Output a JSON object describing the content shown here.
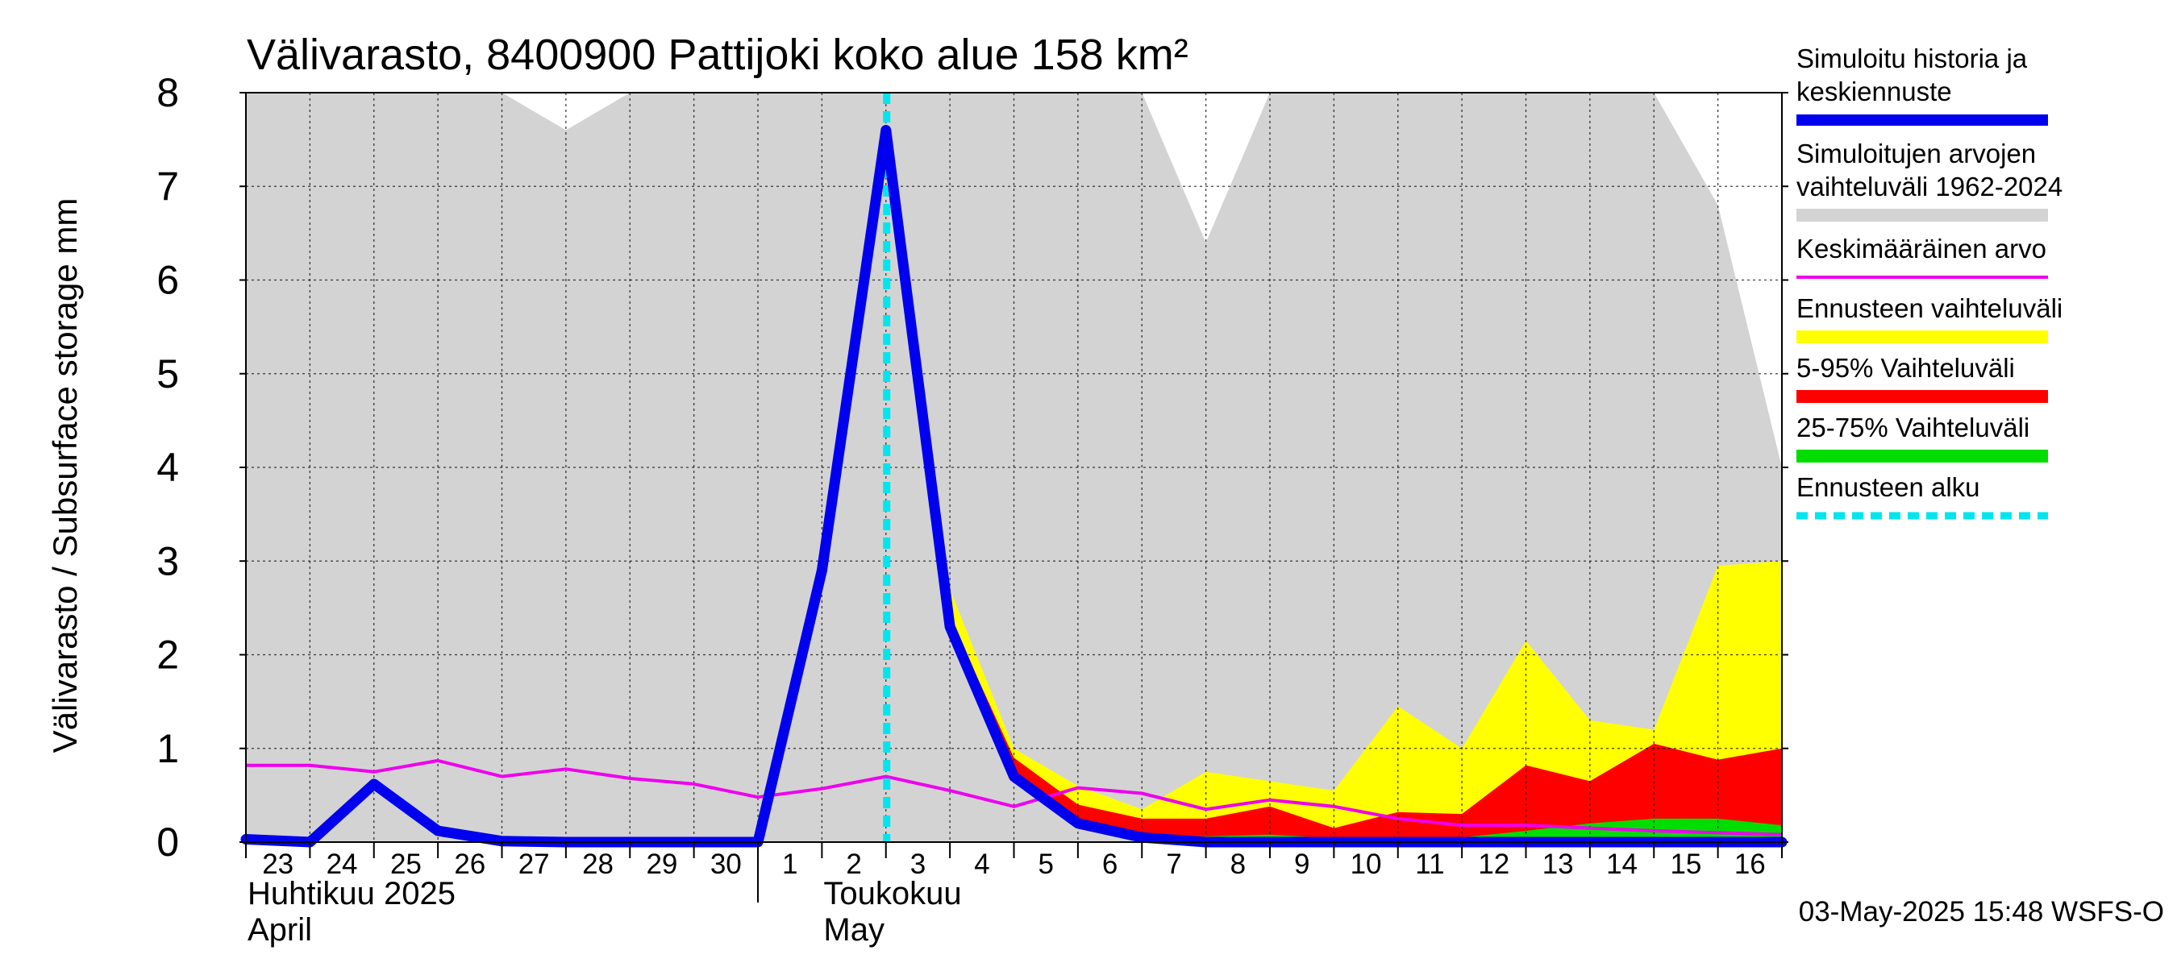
{
  "chart_data": {
    "type": "area",
    "title": "Välivarasto, 8400900 Pattijoki koko alue 158 km²",
    "ylabel": "Välivarasto / Subsurface storage  mm",
    "ylim": [
      0,
      8
    ],
    "yticks": [
      "0",
      "1",
      "2",
      "3",
      "4",
      "5",
      "6",
      "7",
      "8"
    ],
    "x_start": "2025-04-23",
    "x_end": "2025-05-17",
    "xtick_labels": [
      "23",
      "24",
      "25",
      "26",
      "27",
      "28",
      "29",
      "30",
      "1",
      "2",
      "3",
      "4",
      "5",
      "6",
      "7",
      "8",
      "9",
      "10",
      "11",
      "12",
      "13",
      "14",
      "15",
      "16"
    ],
    "month_labels": [
      {
        "fi": "Huhtikuu  2025",
        "en": "April",
        "date": "2025-04-23"
      },
      {
        "fi": "Toukokuu",
        "en": "May",
        "date": "2025-05-02"
      }
    ],
    "month_divider_date": "2025-05-01",
    "forecast_start": "2025-05-03",
    "grid": true,
    "legend_placement": "right",
    "legend": [
      {
        "label": "Simuloitu historia ja keskiennuste",
        "color": "#0000ee",
        "style": "line-thick"
      },
      {
        "label": "Simuloitujen arvojen vaihteluväli 1962-2024",
        "color": "#d3d3d3",
        "style": "band"
      },
      {
        "label": "Keskimääräinen arvo",
        "color": "#ee00ee",
        "style": "line"
      },
      {
        "label": "Ennusteen vaihteluväli",
        "color": "#ffff00",
        "style": "band"
      },
      {
        "label": "5-95% Vaihteluväli",
        "color": "#ff0000",
        "style": "band"
      },
      {
        "label": "25-75% Vaihteluväli",
        "color": "#00dd00",
        "style": "band"
      },
      {
        "label": "Ennusteen alku",
        "color": "#00e5ee",
        "style": "dashed"
      }
    ],
    "series": [
      {
        "name": "Simuloitujen arvojen vaihteluväli 1962-2024",
        "type": "band",
        "color": "#d3d3d3",
        "x": [
          "2025-04-23",
          "2025-04-24",
          "2025-04-25",
          "2025-04-26",
          "2025-04-27",
          "2025-04-28",
          "2025-04-29",
          "2025-04-30",
          "2025-05-01",
          "2025-05-02",
          "2025-05-03",
          "2025-05-04",
          "2025-05-05",
          "2025-05-06",
          "2025-05-07",
          "2025-05-08",
          "2025-05-09",
          "2025-05-10",
          "2025-05-11",
          "2025-05-12",
          "2025-05-13",
          "2025-05-14",
          "2025-05-15",
          "2025-05-16",
          "2025-05-17"
        ],
        "upper": [
          8,
          8,
          8,
          8,
          8,
          7.6,
          8,
          8,
          8,
          8,
          8,
          8,
          8,
          8,
          8,
          6.4,
          8,
          8,
          8,
          8,
          8,
          8,
          8,
          6.8,
          4.0
        ],
        "lower": [
          0,
          0,
          0,
          0,
          0,
          0,
          0,
          0,
          0,
          0,
          0,
          0,
          0,
          0,
          0,
          0,
          0,
          0,
          0,
          0,
          0,
          0,
          0,
          0,
          0
        ]
      },
      {
        "name": "Ennusteen vaihteluväli",
        "type": "band",
        "color": "#ffff00",
        "x": [
          "2025-05-03",
          "2025-05-04",
          "2025-05-05",
          "2025-05-06",
          "2025-05-07",
          "2025-05-08",
          "2025-05-09",
          "2025-05-10",
          "2025-05-11",
          "2025-05-12",
          "2025-05-13",
          "2025-05-14",
          "2025-05-15",
          "2025-05-16",
          "2025-05-17"
        ],
        "upper": [
          7.6,
          2.7,
          1.0,
          0.6,
          0.35,
          0.75,
          0.65,
          0.55,
          1.45,
          1.0,
          2.15,
          1.3,
          1.2,
          2.95,
          3.0
        ],
        "lower": [
          7.6,
          2.3,
          0.7,
          0.2,
          0.05,
          0.0,
          0.0,
          0.0,
          0.0,
          0.0,
          0.0,
          0.0,
          0.0,
          0.0,
          0.0
        ]
      },
      {
        "name": "5-95% Vaihteluväli",
        "type": "band",
        "color": "#ff0000",
        "x": [
          "2025-05-03",
          "2025-05-04",
          "2025-05-05",
          "2025-05-06",
          "2025-05-07",
          "2025-05-08",
          "2025-05-09",
          "2025-05-10",
          "2025-05-11",
          "2025-05-12",
          "2025-05-13",
          "2025-05-14",
          "2025-05-15",
          "2025-05-16",
          "2025-05-17"
        ],
        "upper": [
          7.6,
          2.4,
          0.9,
          0.4,
          0.25,
          0.25,
          0.38,
          0.15,
          0.32,
          0.3,
          0.82,
          0.65,
          1.05,
          0.88,
          1.0
        ],
        "lower": [
          7.6,
          2.3,
          0.7,
          0.2,
          0.05,
          0.0,
          0.0,
          0.0,
          0.0,
          0.0,
          0.0,
          0.0,
          0.0,
          0.0,
          0.0
        ]
      },
      {
        "name": "25-75% Vaihteluväli",
        "type": "band",
        "color": "#00dd00",
        "x": [
          "2025-05-03",
          "2025-05-04",
          "2025-05-05",
          "2025-05-06",
          "2025-05-07",
          "2025-05-08",
          "2025-05-09",
          "2025-05-10",
          "2025-05-11",
          "2025-05-12",
          "2025-05-13",
          "2025-05-14",
          "2025-05-15",
          "2025-05-16",
          "2025-05-17"
        ],
        "upper": [
          7.6,
          2.35,
          0.75,
          0.25,
          0.08,
          0.06,
          0.08,
          0.04,
          0.04,
          0.05,
          0.12,
          0.2,
          0.25,
          0.25,
          0.18
        ],
        "lower": [
          7.6,
          2.3,
          0.7,
          0.2,
          0.05,
          0.0,
          0.0,
          0.0,
          0.0,
          0.0,
          0.0,
          0.02,
          0.03,
          0.03,
          0.02
        ]
      },
      {
        "name": "Keskimääräinen arvo",
        "type": "line",
        "color": "#ee00ee",
        "x": [
          "2025-04-23",
          "2025-04-24",
          "2025-04-25",
          "2025-04-26",
          "2025-04-27",
          "2025-04-28",
          "2025-04-29",
          "2025-04-30",
          "2025-05-01",
          "2025-05-02",
          "2025-05-03",
          "2025-05-04",
          "2025-05-05",
          "2025-05-06",
          "2025-05-07",
          "2025-05-08",
          "2025-05-09",
          "2025-05-10",
          "2025-05-11",
          "2025-05-12",
          "2025-05-13",
          "2025-05-14",
          "2025-05-15",
          "2025-05-16",
          "2025-05-17"
        ],
        "values": [
          0.82,
          0.82,
          0.75,
          0.87,
          0.7,
          0.78,
          0.68,
          0.62,
          0.48,
          0.57,
          0.7,
          0.55,
          0.38,
          0.58,
          0.52,
          0.35,
          0.45,
          0.38,
          0.25,
          0.18,
          0.18,
          0.15,
          0.12,
          0.1,
          0.08
        ]
      },
      {
        "name": "Simuloitu historia ja keskiennuste",
        "type": "line",
        "color": "#0000ee",
        "x": [
          "2025-04-23",
          "2025-04-24",
          "2025-04-25",
          "2025-04-26",
          "2025-04-27",
          "2025-04-28",
          "2025-04-29",
          "2025-04-30",
          "2025-05-01",
          "2025-05-02",
          "2025-05-03",
          "2025-05-04",
          "2025-05-05",
          "2025-05-06",
          "2025-05-07",
          "2025-05-08",
          "2025-05-09",
          "2025-05-10",
          "2025-05-11",
          "2025-05-12",
          "2025-05-13",
          "2025-05-14",
          "2025-05-15",
          "2025-05-16",
          "2025-05-17"
        ],
        "values": [
          0.03,
          -0.02,
          0.62,
          0.12,
          0.01,
          -0.03,
          -0.04,
          -0.04,
          0.0,
          2.9,
          7.6,
          2.3,
          0.7,
          0.2,
          0.05,
          0.0,
          -0.02,
          -0.02,
          -0.02,
          -0.02,
          0.0,
          0.0,
          0.0,
          0.0,
          -0.02
        ]
      }
    ],
    "footer": "03-May-2025 15:48 WSFS-O"
  }
}
